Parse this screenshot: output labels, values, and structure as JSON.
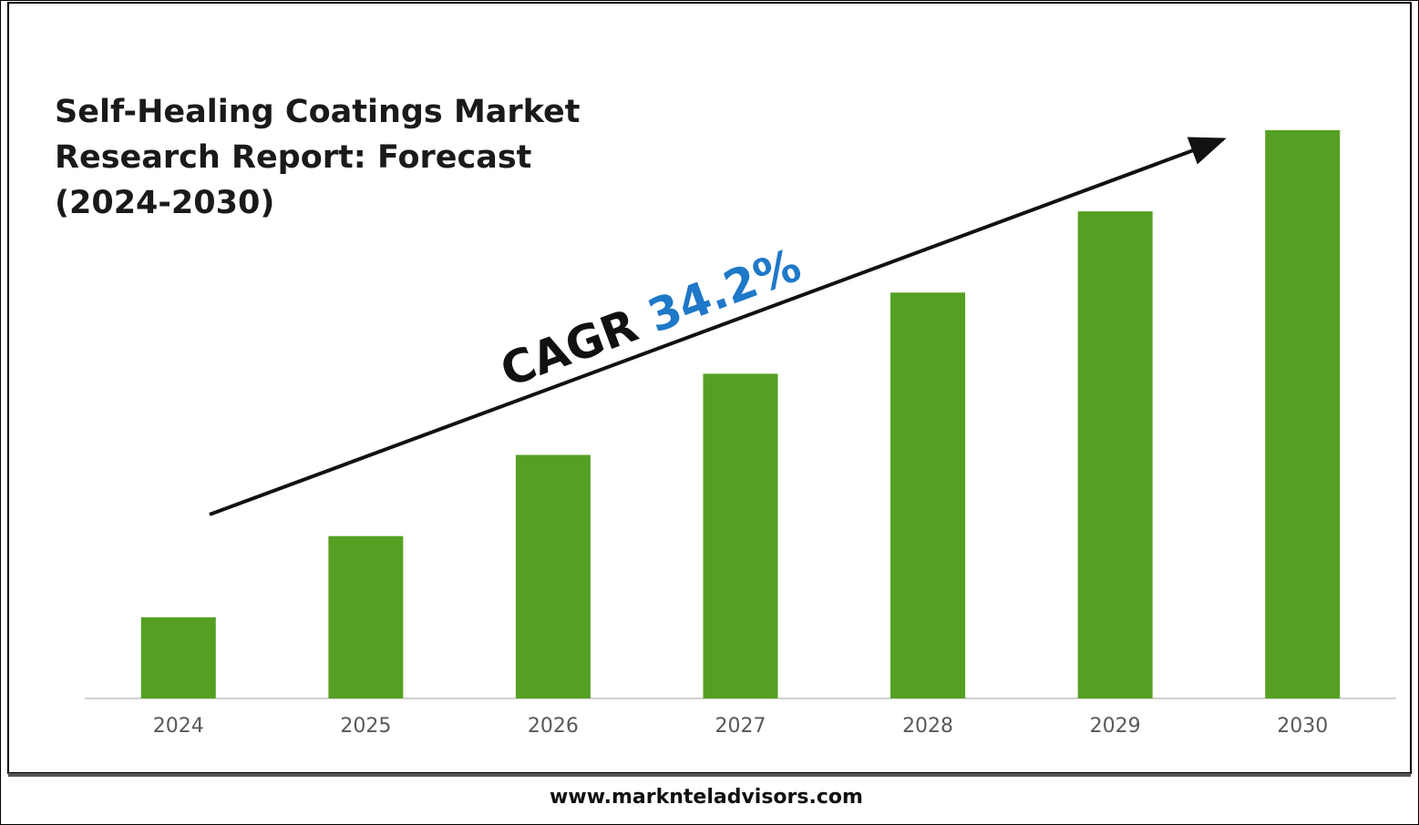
{
  "chart_data": {
    "type": "bar",
    "title_lines": [
      "Self-Healing Coatings Market",
      "Research Report: Forecast",
      "(2024-2030)"
    ],
    "categories": [
      "2024",
      "2025",
      "2026",
      "2027",
      "2028",
      "2029",
      "2030"
    ],
    "values": [
      1,
      2,
      3,
      4,
      5,
      6,
      7
    ],
    "color": "#55a022",
    "ylim": [
      0,
      7
    ],
    "cagr_label": "CAGR",
    "cagr_value": "34.2%",
    "cagr_value_color": "#1f78c8",
    "source": "www.marknteladvisors.com"
  }
}
